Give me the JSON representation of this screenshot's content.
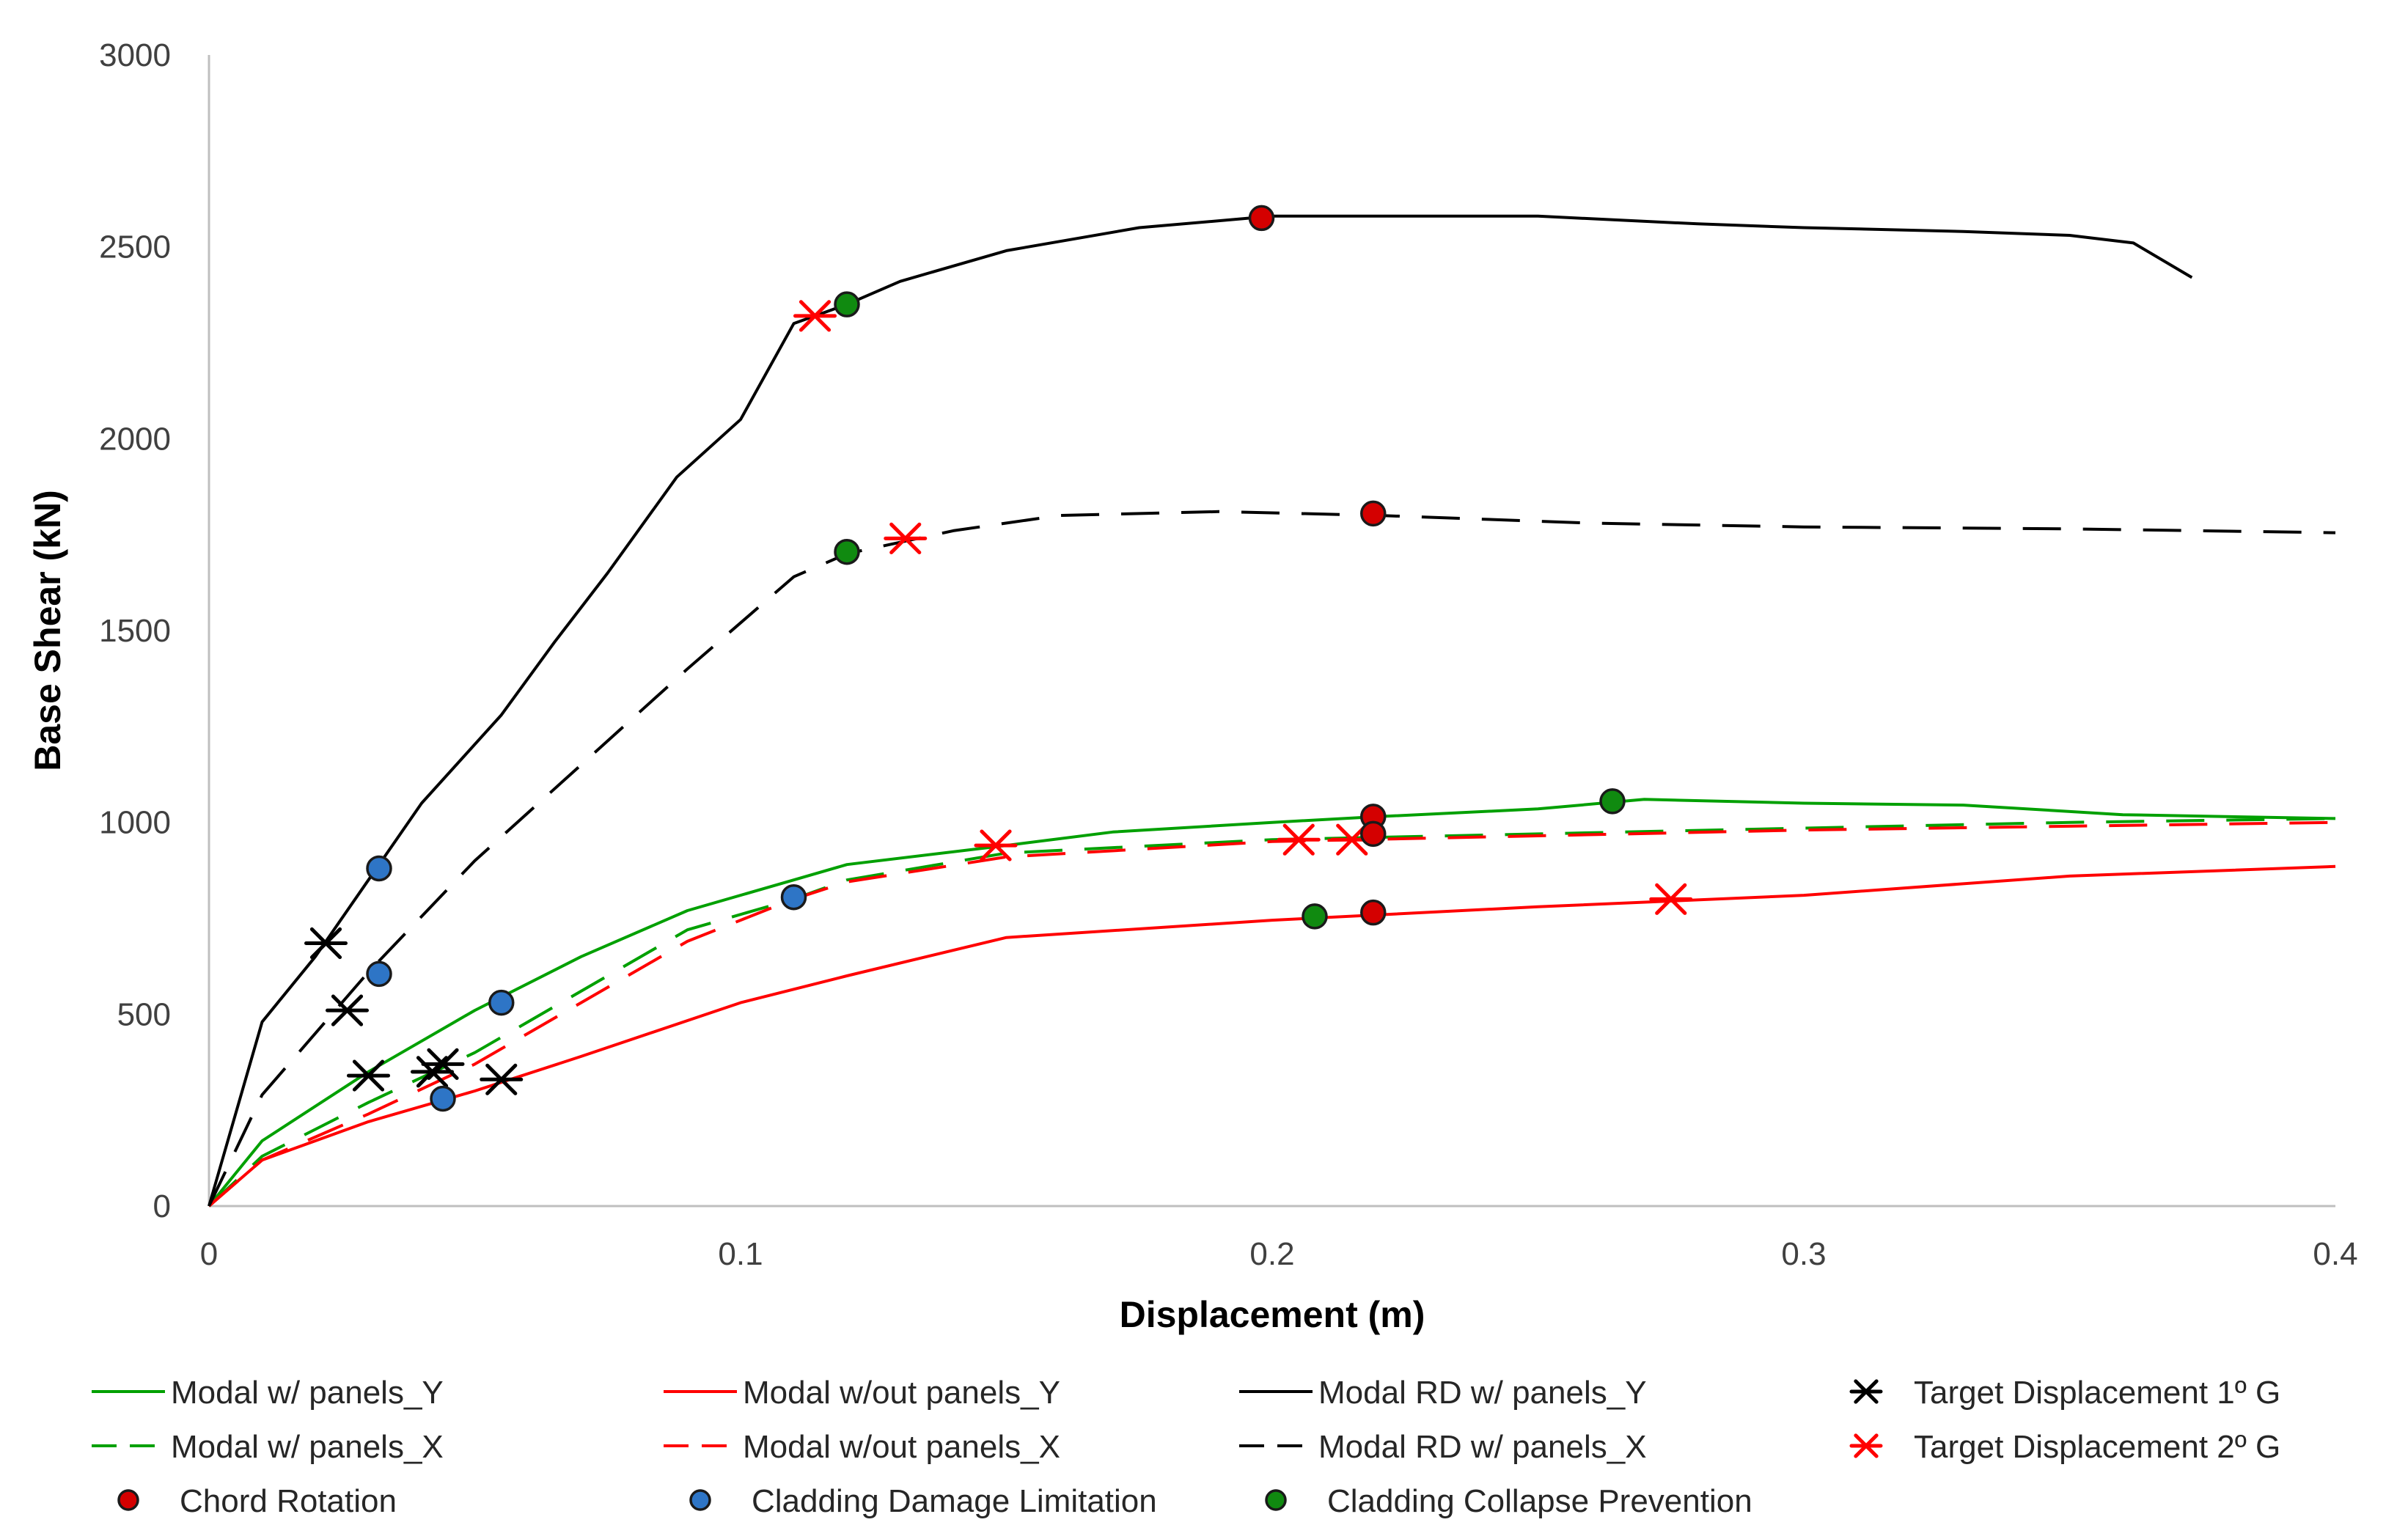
{
  "chart_data": {
    "type": "line",
    "xlabel": "Displacement (m)",
    "ylabel": "Base Shear (kN)",
    "xlim": [
      0,
      0.4
    ],
    "ylim": [
      0,
      3000
    ],
    "x_ticks": [
      "0",
      "0.1",
      "0.2",
      "0.3",
      "0.4"
    ],
    "y_ticks": [
      "0",
      "500",
      "1000",
      "1500",
      "2000",
      "2500",
      "3000"
    ],
    "grid": false,
    "legend_position": "bottom",
    "series": [
      {
        "name": "Modal w/ panels_Y",
        "kind": "line",
        "color": "#00A000",
        "dash": "solid",
        "x": [
          0,
          0.01,
          0.03,
          0.05,
          0.07,
          0.09,
          0.11,
          0.12,
          0.15,
          0.17,
          0.2,
          0.22,
          0.25,
          0.27,
          0.3,
          0.33,
          0.36,
          0.4
        ],
        "y": [
          0,
          170,
          350,
          510,
          650,
          770,
          850,
          890,
          940,
          975,
          1000,
          1015,
          1035,
          1060,
          1050,
          1045,
          1020,
          1010
        ]
      },
      {
        "name": "Modal w/ panels_X",
        "kind": "line",
        "color": "#00A000",
        "dash": "dashed",
        "x": [
          0,
          0.01,
          0.03,
          0.05,
          0.07,
          0.09,
          0.11,
          0.12,
          0.15,
          0.2,
          0.25,
          0.3,
          0.35,
          0.4
        ],
        "y": [
          0,
          130,
          270,
          400,
          560,
          720,
          800,
          850,
          920,
          955,
          970,
          985,
          1000,
          1010
        ]
      },
      {
        "name": "Modal w/out panels_Y",
        "kind": "line",
        "color": "#FF0000",
        "dash": "solid",
        "x": [
          0,
          0.01,
          0.03,
          0.05,
          0.07,
          0.1,
          0.12,
          0.15,
          0.2,
          0.25,
          0.3,
          0.35,
          0.4
        ],
        "y": [
          0,
          120,
          220,
          300,
          390,
          530,
          600,
          700,
          745,
          780,
          810,
          860,
          885
        ]
      },
      {
        "name": "Modal w/out panels_X",
        "kind": "line",
        "color": "#FF0000",
        "dash": "dashed",
        "x": [
          0,
          0.01,
          0.03,
          0.05,
          0.07,
          0.09,
          0.11,
          0.12,
          0.15,
          0.2,
          0.25,
          0.3,
          0.35,
          0.4
        ],
        "y": [
          0,
          120,
          240,
          370,
          530,
          690,
          800,
          845,
          910,
          950,
          965,
          980,
          990,
          1000
        ]
      },
      {
        "name": "Modal RD w/ panels_Y",
        "kind": "line",
        "color": "#000000",
        "dash": "solid",
        "x": [
          0,
          0.01,
          0.02,
          0.03,
          0.04,
          0.055,
          0.065,
          0.075,
          0.088,
          0.1,
          0.11,
          0.12,
          0.13,
          0.15,
          0.175,
          0.2,
          0.25,
          0.28,
          0.3,
          0.33,
          0.35,
          0.362,
          0.373
        ],
        "y": [
          0,
          480,
          650,
          850,
          1050,
          1280,
          1470,
          1650,
          1900,
          2050,
          2300,
          2350,
          2410,
          2490,
          2550,
          2580,
          2580,
          2560,
          2550,
          2540,
          2530,
          2510,
          2420
        ]
      },
      {
        "name": "Modal RD w/ panels_X",
        "kind": "line",
        "color": "#000000",
        "dash": "dashed",
        "x": [
          0,
          0.01,
          0.03,
          0.05,
          0.07,
          0.09,
          0.11,
          0.12,
          0.14,
          0.16,
          0.19,
          0.22,
          0.26,
          0.3,
          0.35,
          0.4
        ],
        "y": [
          0,
          290,
          610,
          900,
          1150,
          1400,
          1640,
          1700,
          1760,
          1800,
          1810,
          1800,
          1780,
          1770,
          1765,
          1755
        ]
      },
      {
        "name": "Target Displacement 1º G",
        "kind": "marker",
        "marker": "asterisk",
        "color": "#000000",
        "x": [
          0.022,
          0.026,
          0.03,
          0.042,
          0.044,
          0.055
        ],
        "y": [
          685,
          510,
          340,
          350,
          370,
          330
        ]
      },
      {
        "name": "Target Displacement 2º G",
        "kind": "marker",
        "marker": "asterisk",
        "color": "#FF0000",
        "x": [
          0.114,
          0.131,
          0.148,
          0.205,
          0.215,
          0.275
        ],
        "y": [
          2320,
          1740,
          940,
          955,
          955,
          800
        ]
      },
      {
        "name": "Chord Rotation",
        "kind": "marker",
        "marker": "circle",
        "color": "#D40000",
        "x": [
          0.198,
          0.219,
          0.219,
          0.219,
          0.219
        ],
        "y": [
          2575,
          1805,
          1015,
          970,
          765
        ]
      },
      {
        "name": "Cladding Damage Limitation",
        "kind": "marker",
        "marker": "circle",
        "color": "#2E75C6",
        "x": [
          0.032,
          0.032,
          0.044,
          0.055,
          0.11
        ],
        "y": [
          880,
          605,
          280,
          530,
          805
        ]
      },
      {
        "name": "Cladding Collapse Prevention",
        "kind": "marker",
        "marker": "circle",
        "color": "#108A10",
        "x": [
          0.12,
          0.12,
          0.208,
          0.264
        ],
        "y": [
          2350,
          1705,
          755,
          1055
        ]
      }
    ]
  }
}
